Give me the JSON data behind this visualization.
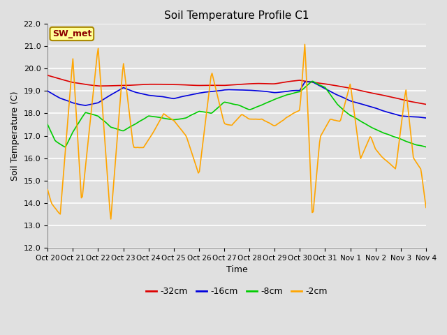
{
  "title": "Soil Temperature Profile C1",
  "xlabel": "Time",
  "ylabel": "Soil Temperature (C)",
  "ylim": [
    12.0,
    22.0
  ],
  "yticks": [
    12.0,
    13.0,
    14.0,
    15.0,
    16.0,
    17.0,
    18.0,
    19.0,
    20.0,
    21.0,
    22.0
  ],
  "xtick_labels": [
    "Oct 20",
    "Oct 21",
    "Oct 22",
    "Oct 23",
    "Oct 24",
    "Oct 25",
    "Oct 26",
    "Oct 27",
    "Oct 28",
    "Oct 29",
    "Oct 30",
    "Oct 31",
    "Nov 1",
    "Nov 2",
    "Nov 3",
    "Nov 4"
  ],
  "colors": {
    "-32cm": "#dd0000",
    "-16cm": "#0000dd",
    "-8cm": "#00cc00",
    "-2cm": "#ffa500"
  },
  "legend_labels": [
    "-32cm",
    "-16cm",
    "-8cm",
    "-2cm"
  ],
  "bg_color": "#e0e0e0",
  "grid_color": "#ffffff",
  "annotation_text": "SW_met",
  "annotation_bg": "#ffff99",
  "annotation_border": "#aa8800"
}
